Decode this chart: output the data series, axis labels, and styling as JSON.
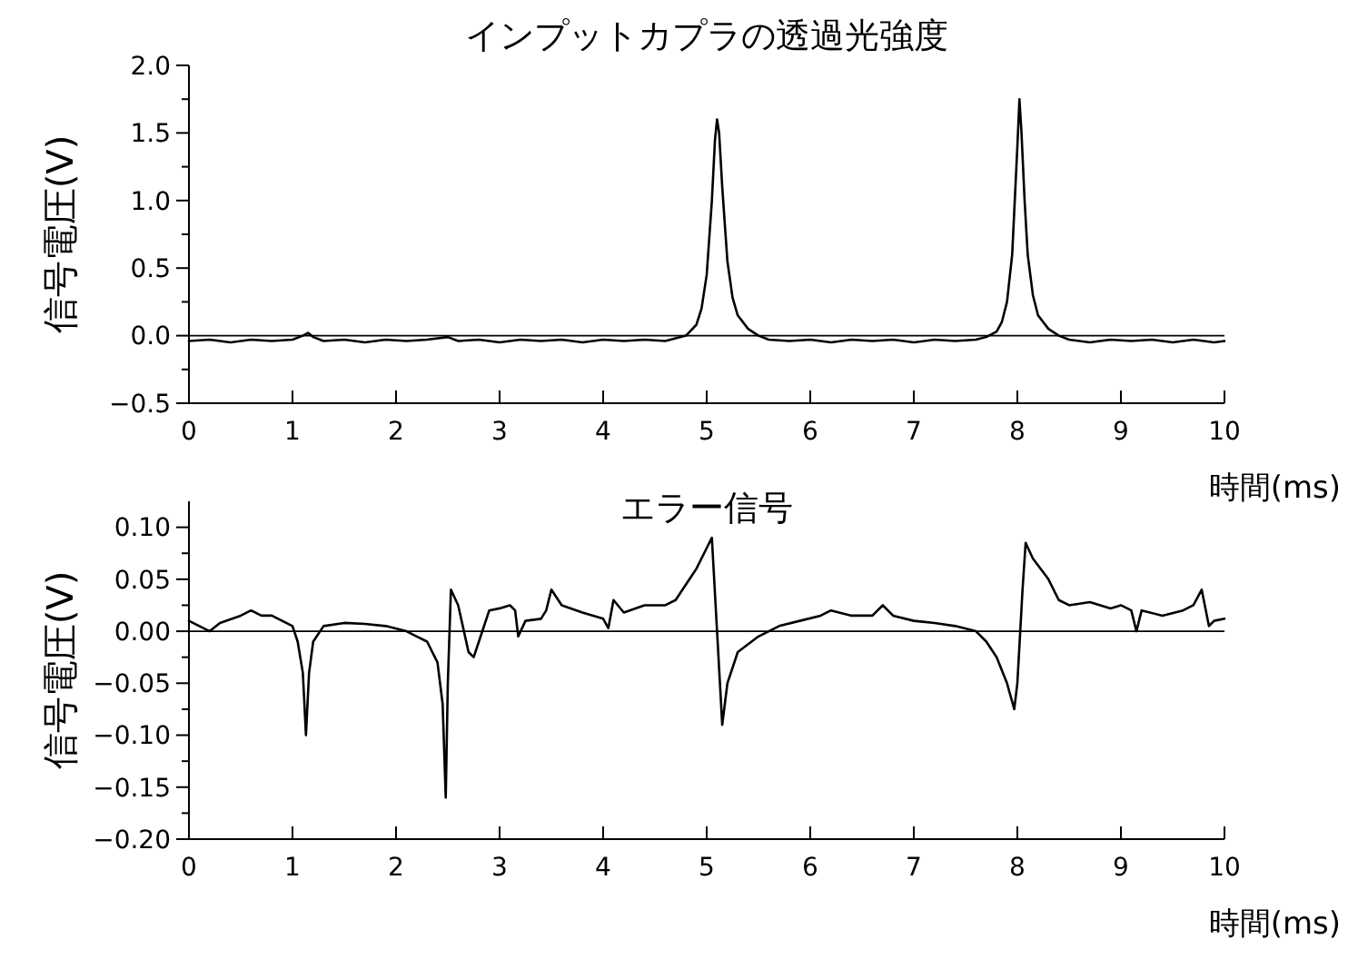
{
  "chart_data": [
    {
      "type": "line",
      "title": "インプットカプラの透過光強度",
      "xlabel": "時間(ms)",
      "ylabel": "信号電圧(V)",
      "xlim": [
        0,
        10
      ],
      "xticks": [
        0,
        1,
        2,
        3,
        4,
        5,
        6,
        7,
        8,
        9,
        10
      ],
      "ylim": [
        -0.5,
        2.0
      ],
      "yticks": [
        {
          "value": -0.5,
          "label": "−0.5"
        },
        {
          "value": -0.25,
          "label": null
        },
        {
          "value": 0,
          "label": "0.0"
        },
        {
          "value": 0.25,
          "label": null
        },
        {
          "value": 0.5,
          "label": "0.5"
        },
        {
          "value": 0.75,
          "label": null
        },
        {
          "value": 1.0,
          "label": "1.0"
        },
        {
          "value": 1.25,
          "label": null
        },
        {
          "value": 1.5,
          "label": "1.5"
        },
        {
          "value": 1.75,
          "label": null
        },
        {
          "value": 2.0,
          "label": "2.0"
        }
      ],
      "ref_lines": [
        {
          "axis": "y",
          "value": 0,
          "color": "#000000"
        }
      ],
      "series": [
        {
          "color": "#000000",
          "x": [
            0,
            0.2,
            0.4,
            0.6,
            0.8,
            1.0,
            1.1,
            1.15,
            1.2,
            1.3,
            1.5,
            1.7,
            1.9,
            2.1,
            2.3,
            2.5,
            2.6,
            2.8,
            3.0,
            3.2,
            3.4,
            3.6,
            3.8,
            4.0,
            4.2,
            4.4,
            4.6,
            4.7,
            4.8,
            4.9,
            4.95,
            5.0,
            5.05,
            5.08,
            5.1,
            5.12,
            5.15,
            5.2,
            5.25,
            5.3,
            5.4,
            5.5,
            5.6,
            5.8,
            6.0,
            6.2,
            6.4,
            6.6,
            6.8,
            7.0,
            7.2,
            7.4,
            7.6,
            7.7,
            7.8,
            7.85,
            7.9,
            7.95,
            8.0,
            8.02,
            8.04,
            8.07,
            8.1,
            8.15,
            8.2,
            8.3,
            8.4,
            8.5,
            8.7,
            8.9,
            9.1,
            9.3,
            9.5,
            9.7,
            9.9,
            10.0
          ],
          "values": [
            -0.04,
            -0.03,
            -0.05,
            -0.03,
            -0.04,
            -0.03,
            0.0,
            0.02,
            -0.01,
            -0.04,
            -0.03,
            -0.05,
            -0.03,
            -0.04,
            -0.03,
            -0.01,
            -0.04,
            -0.03,
            -0.05,
            -0.03,
            -0.04,
            -0.03,
            -0.05,
            -0.03,
            -0.04,
            -0.03,
            -0.04,
            -0.02,
            0.0,
            0.08,
            0.2,
            0.45,
            1.0,
            1.45,
            1.6,
            1.5,
            1.1,
            0.55,
            0.28,
            0.15,
            0.05,
            0.0,
            -0.03,
            -0.04,
            -0.03,
            -0.05,
            -0.03,
            -0.04,
            -0.03,
            -0.05,
            -0.03,
            -0.04,
            -0.03,
            -0.01,
            0.03,
            0.1,
            0.25,
            0.6,
            1.4,
            1.75,
            1.5,
            1.0,
            0.6,
            0.3,
            0.15,
            0.05,
            0.0,
            -0.03,
            -0.05,
            -0.03,
            -0.04,
            -0.03,
            -0.05,
            -0.03,
            -0.05,
            -0.04
          ]
        }
      ]
    },
    {
      "type": "line",
      "title": "エラー信号",
      "xlabel": "時間(ms)",
      "ylabel": "信号電圧(V)",
      "xlim": [
        0,
        10
      ],
      "xticks": [
        0,
        1,
        2,
        3,
        4,
        5,
        6,
        7,
        8,
        9,
        10
      ],
      "ylim": [
        -0.2,
        0.125
      ],
      "yticks": [
        {
          "value": -0.2,
          "label": "−0.20"
        },
        {
          "value": -0.175,
          "label": null
        },
        {
          "value": -0.15,
          "label": "−0.15"
        },
        {
          "value": -0.125,
          "label": null
        },
        {
          "value": -0.1,
          "label": "−0.10"
        },
        {
          "value": -0.075,
          "label": null
        },
        {
          "value": -0.05,
          "label": "−0.05"
        },
        {
          "value": -0.025,
          "label": null
        },
        {
          "value": 0,
          "label": "0.00"
        },
        {
          "value": 0.025,
          "label": null
        },
        {
          "value": 0.05,
          "label": "0.05"
        },
        {
          "value": 0.075,
          "label": null
        },
        {
          "value": 0.1,
          "label": "0.10"
        }
      ],
      "ref_lines": [
        {
          "axis": "y",
          "value": 0,
          "color": "#000000"
        }
      ],
      "series": [
        {
          "color": "#000000",
          "x": [
            0,
            0.1,
            0.2,
            0.3,
            0.5,
            0.6,
            0.7,
            0.8,
            0.9,
            1.0,
            1.05,
            1.1,
            1.13,
            1.16,
            1.2,
            1.3,
            1.5,
            1.7,
            1.9,
            2.1,
            2.2,
            2.3,
            2.4,
            2.45,
            2.48,
            2.5,
            2.53,
            2.6,
            2.7,
            2.75,
            2.8,
            2.9,
            3.0,
            3.1,
            3.15,
            3.18,
            3.25,
            3.4,
            3.45,
            3.5,
            3.6,
            3.8,
            4.0,
            4.05,
            4.1,
            4.2,
            4.4,
            4.6,
            4.7,
            4.8,
            4.9,
            5.0,
            5.05,
            5.1,
            5.15,
            5.2,
            5.3,
            5.5,
            5.7,
            5.9,
            6.1,
            6.2,
            6.4,
            6.6,
            6.7,
            6.8,
            7.0,
            7.2,
            7.4,
            7.6,
            7.7,
            7.8,
            7.9,
            7.97,
            8.0,
            8.05,
            8.08,
            8.15,
            8.3,
            8.4,
            8.5,
            8.7,
            8.9,
            9.0,
            9.1,
            9.15,
            9.2,
            9.4,
            9.6,
            9.7,
            9.78,
            9.85,
            9.9,
            10.0
          ],
          "values": [
            0.01,
            0.005,
            0.0,
            0.008,
            0.015,
            0.02,
            0.015,
            0.015,
            0.01,
            0.005,
            -0.01,
            -0.04,
            -0.1,
            -0.04,
            -0.01,
            0.005,
            0.008,
            0.007,
            0.005,
            0.0,
            -0.005,
            -0.01,
            -0.03,
            -0.07,
            -0.16,
            -0.05,
            0.04,
            0.025,
            -0.02,
            -0.025,
            -0.01,
            0.02,
            0.022,
            0.025,
            0.02,
            -0.005,
            0.01,
            0.012,
            0.02,
            0.04,
            0.025,
            0.018,
            0.012,
            0.003,
            0.03,
            0.018,
            0.025,
            0.025,
            0.03,
            0.045,
            0.06,
            0.08,
            0.09,
            0.0,
            -0.09,
            -0.05,
            -0.02,
            -0.005,
            0.005,
            0.01,
            0.015,
            0.02,
            0.015,
            0.015,
            0.025,
            0.015,
            0.01,
            0.008,
            0.005,
            0.0,
            -0.01,
            -0.025,
            -0.05,
            -0.075,
            -0.05,
            0.04,
            0.085,
            0.07,
            0.05,
            0.03,
            0.025,
            0.028,
            0.022,
            0.025,
            0.02,
            0.0,
            0.02,
            0.015,
            0.02,
            0.025,
            0.04,
            0.005,
            0.01,
            0.012
          ]
        }
      ]
    }
  ]
}
